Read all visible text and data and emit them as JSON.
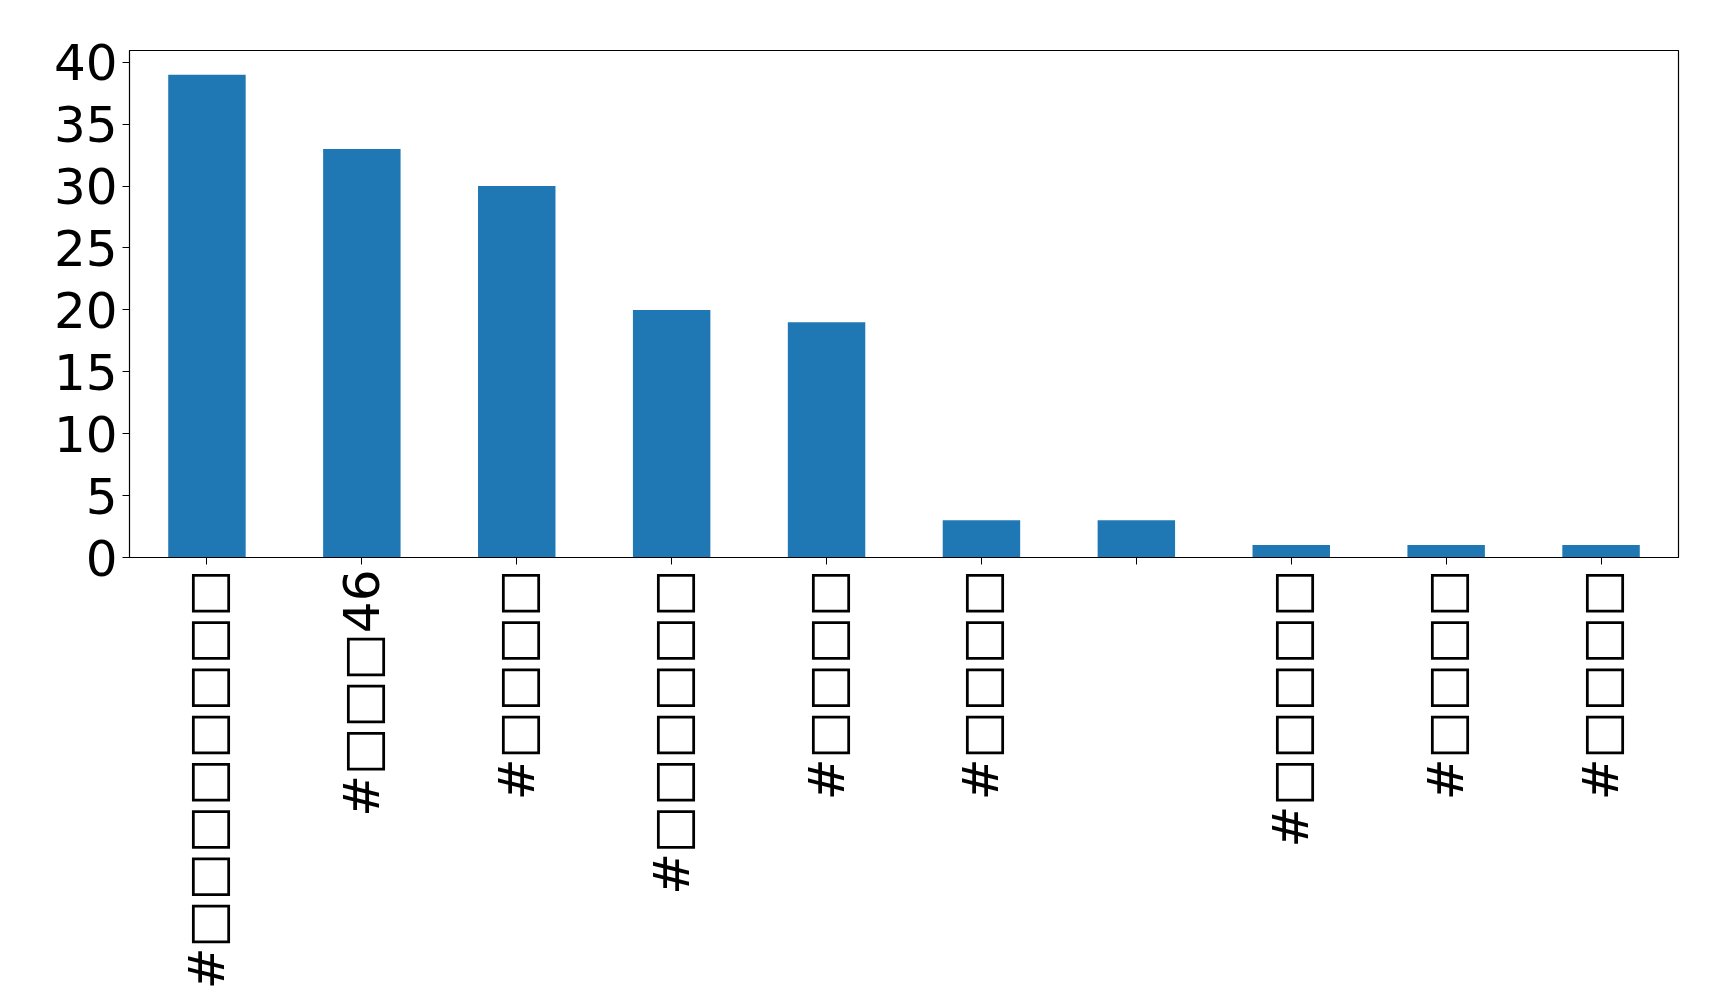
{
  "chart_data": {
    "type": "bar",
    "categories": [
      "#□□□□□□□□",
      "#□□□46",
      "#□□□□",
      "#□□□□□□",
      "#□□□□",
      "#□□□□",
      null,
      "#□□□□□",
      "#□□□□",
      "#□□□□"
    ],
    "values": [
      39,
      33,
      30,
      20,
      19,
      3,
      3,
      1,
      1,
      1
    ],
    "color": "#1f77b4",
    "ylim": [
      0,
      40.95
    ],
    "yticks": [
      0,
      5,
      10,
      15,
      20,
      25,
      30,
      35,
      40
    ],
    "grid": false
  }
}
